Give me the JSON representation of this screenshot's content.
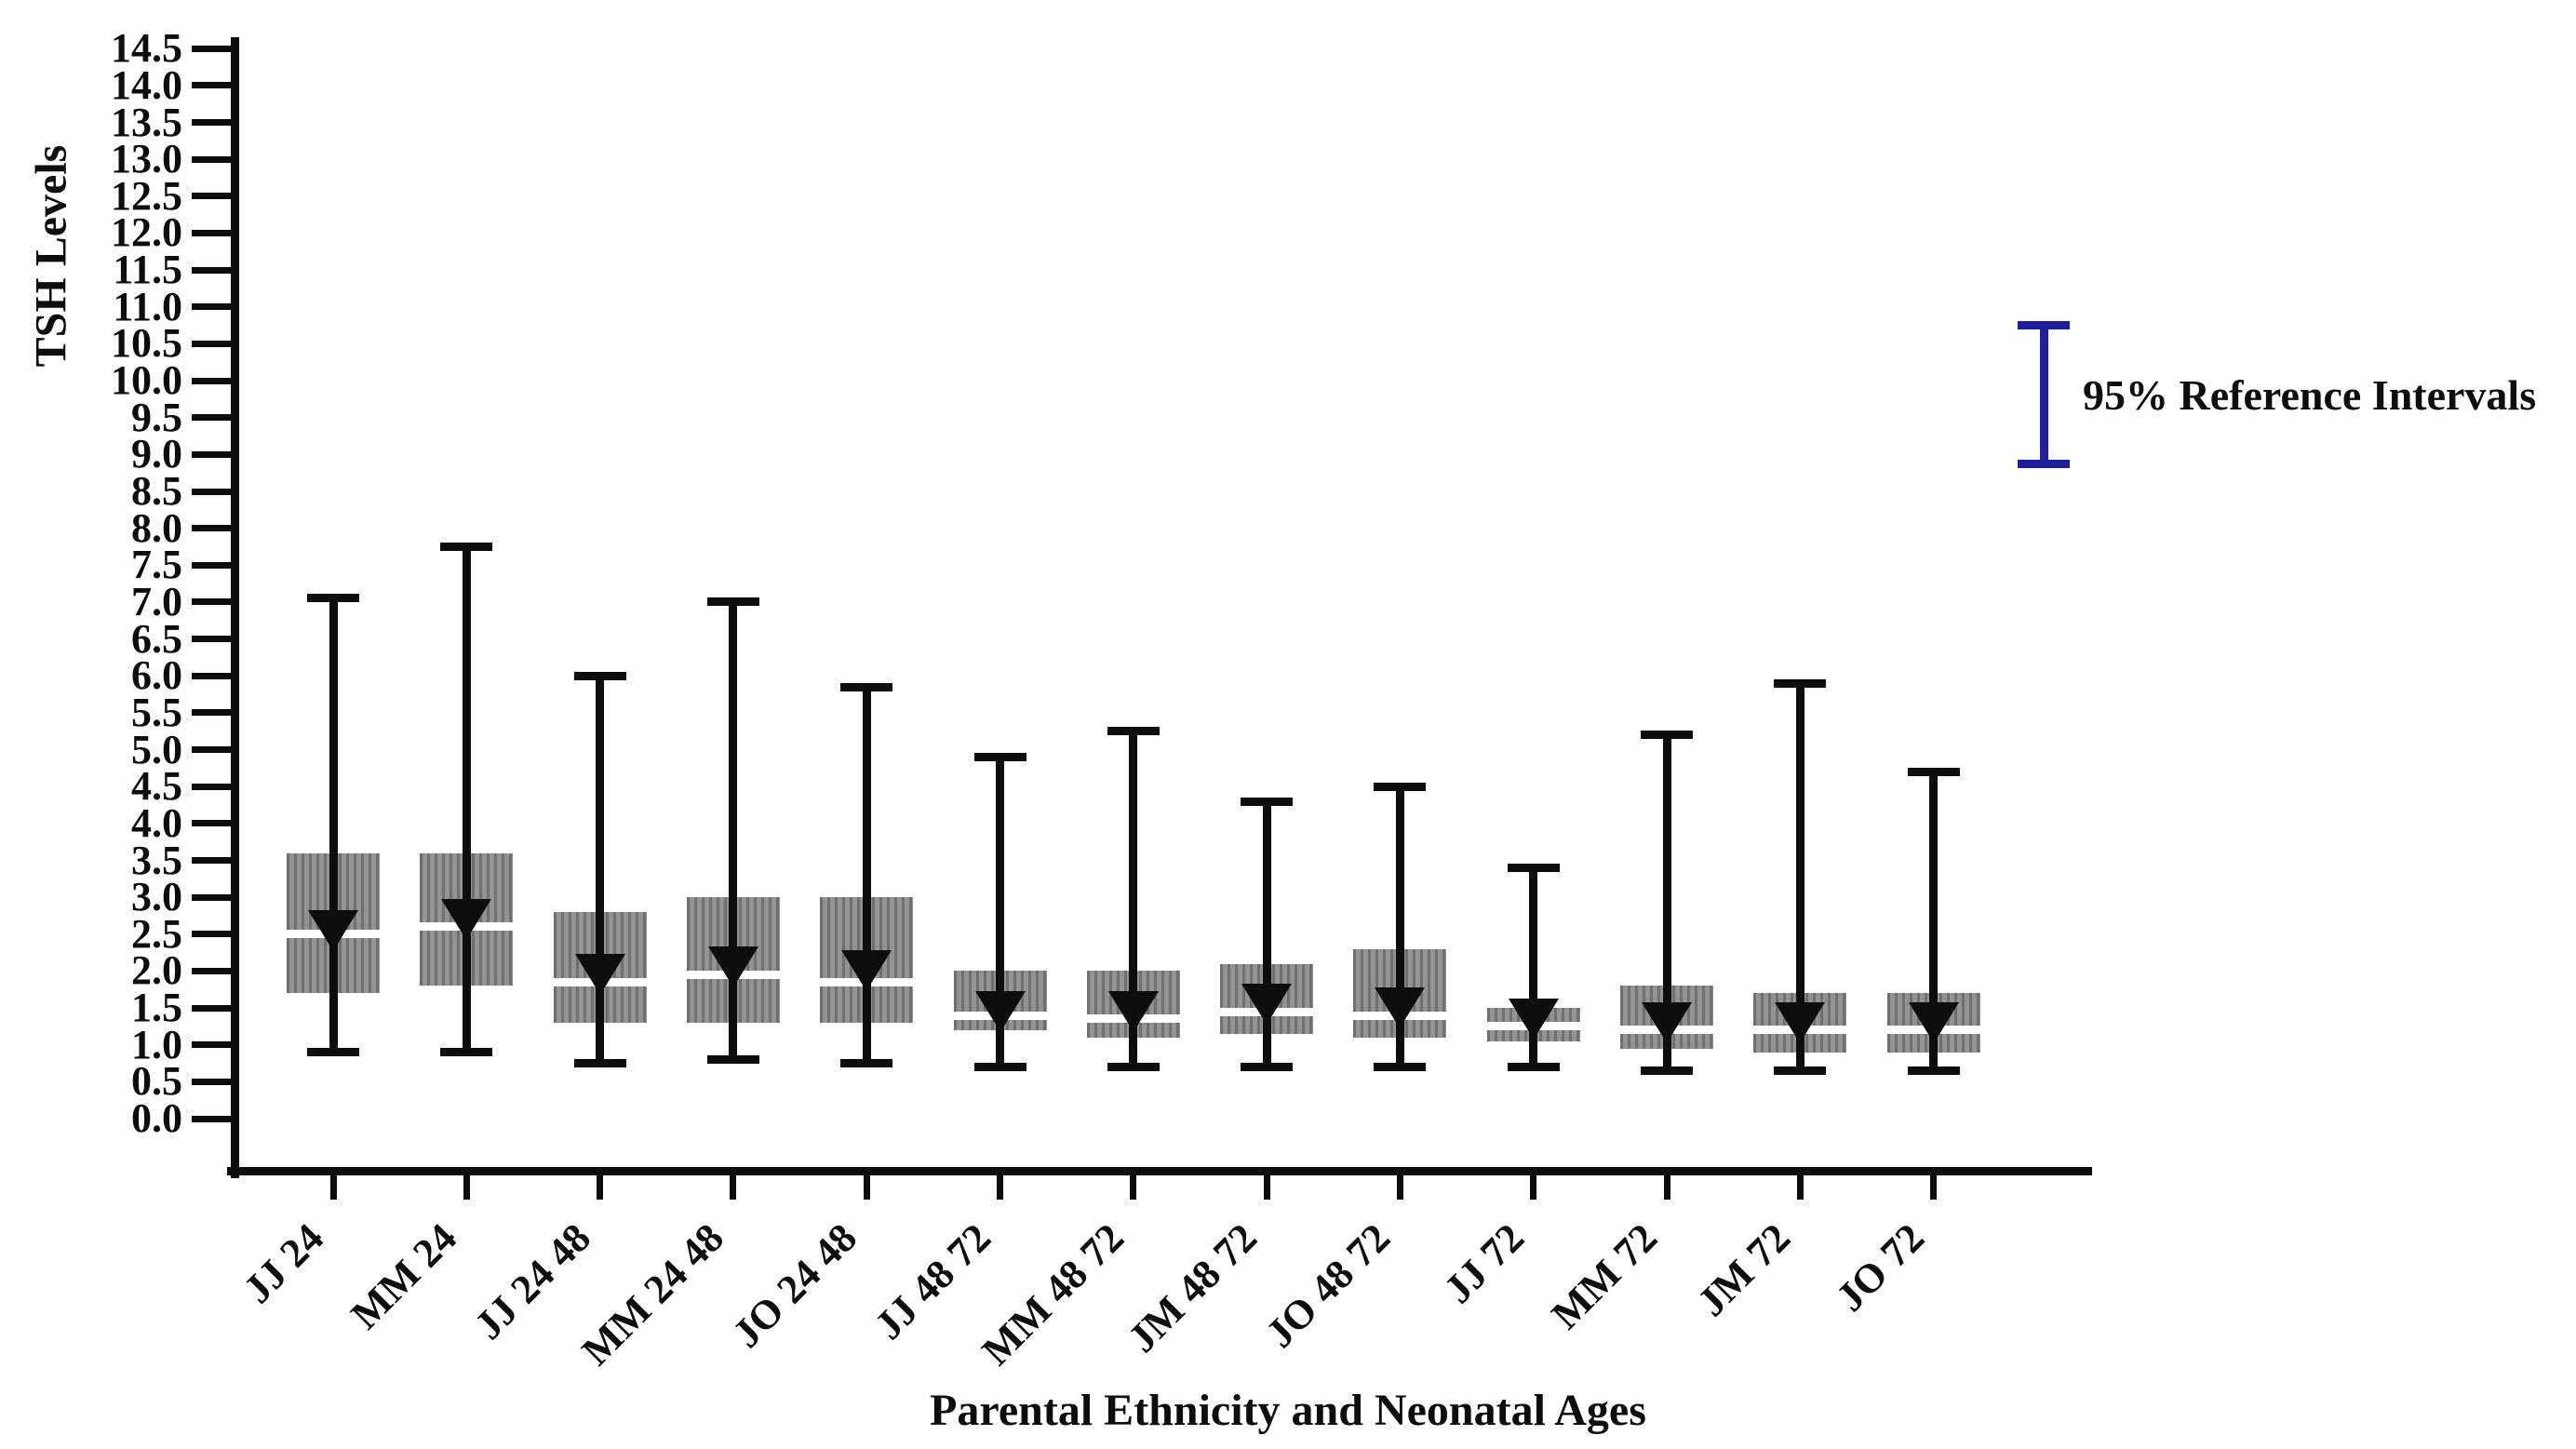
{
  "chart_data": {
    "type": "box",
    "title": "",
    "ylabel": "TSH Levels",
    "xlabel": "Parental Ethnicity and Neonatal Ages",
    "ylim": [
      0.0,
      14.5
    ],
    "ytick_step": 0.5,
    "grid": "off",
    "legend": {
      "label": "95% Reference Intervals",
      "marker": "reference-interval-bar",
      "color": "#1f1f9e",
      "position": "upper-right"
    },
    "box_style": {
      "fill": "#8c8c8c",
      "hatch": "vertical-stripes",
      "hatch_color": "#6f6f6f",
      "whisker_color": "#0d0d0d",
      "median_color": "#ffffff",
      "mean_marker": "triangle-down",
      "mean_marker_color": "#0d0d0d"
    },
    "categories": [
      "JJ 24",
      "MM 24",
      "JJ 24 48",
      "MM 24 48",
      "JO 24 48",
      "JJ 48 72",
      "MM 48 72",
      "JM 48 72",
      "JO 48 72",
      "JJ 72",
      "MM 72",
      "JM 72",
      "JO 72"
    ],
    "boxes": [
      {
        "category": "JJ 24",
        "whisker_low": 0.9,
        "q1": 1.7,
        "median": 2.5,
        "mean": 2.55,
        "q3": 3.6,
        "whisker_high": 7.05
      },
      {
        "category": "MM 24",
        "whisker_low": 0.9,
        "q1": 1.8,
        "median": 2.6,
        "mean": 2.7,
        "q3": 3.6,
        "whisker_high": 7.75
      },
      {
        "category": "JJ 24 48",
        "whisker_low": 0.75,
        "q1": 1.3,
        "median": 1.85,
        "mean": 1.95,
        "q3": 2.8,
        "whisker_high": 6.0
      },
      {
        "category": "MM 24 48",
        "whisker_low": 0.8,
        "q1": 1.3,
        "median": 1.95,
        "mean": 2.05,
        "q3": 3.0,
        "whisker_high": 7.0
      },
      {
        "category": "JO 24 48",
        "whisker_low": 0.75,
        "q1": 1.3,
        "median": 1.85,
        "mean": 2.0,
        "q3": 3.0,
        "whisker_high": 5.85
      },
      {
        "category": "JJ 48 72",
        "whisker_low": 0.7,
        "q1": 1.2,
        "median": 1.4,
        "mean": 1.45,
        "q3": 2.0,
        "whisker_high": 4.9
      },
      {
        "category": "MM 48 72",
        "whisker_low": 0.7,
        "q1": 1.1,
        "median": 1.35,
        "mean": 1.45,
        "q3": 2.0,
        "whisker_high": 5.25
      },
      {
        "category": "JM 48 72",
        "whisker_low": 0.7,
        "q1": 1.15,
        "median": 1.45,
        "mean": 1.55,
        "q3": 2.1,
        "whisker_high": 4.3
      },
      {
        "category": "JO 48 72",
        "whisker_low": 0.7,
        "q1": 1.1,
        "median": 1.4,
        "mean": 1.5,
        "q3": 2.3,
        "whisker_high": 4.5
      },
      {
        "category": "JJ 72",
        "whisker_low": 0.7,
        "q1": 1.05,
        "median": 1.25,
        "mean": 1.35,
        "q3": 1.5,
        "whisker_high": 3.4
      },
      {
        "category": "MM 72",
        "whisker_low": 0.65,
        "q1": 0.95,
        "median": 1.2,
        "mean": 1.3,
        "q3": 1.8,
        "whisker_high": 5.2
      },
      {
        "category": "JM 72",
        "whisker_low": 0.65,
        "q1": 0.9,
        "median": 1.2,
        "mean": 1.3,
        "q3": 1.7,
        "whisker_high": 5.9
      },
      {
        "category": "JO 72",
        "whisker_low": 0.65,
        "q1": 0.9,
        "median": 1.2,
        "mean": 1.3,
        "q3": 1.7,
        "whisker_high": 4.7
      }
    ]
  }
}
